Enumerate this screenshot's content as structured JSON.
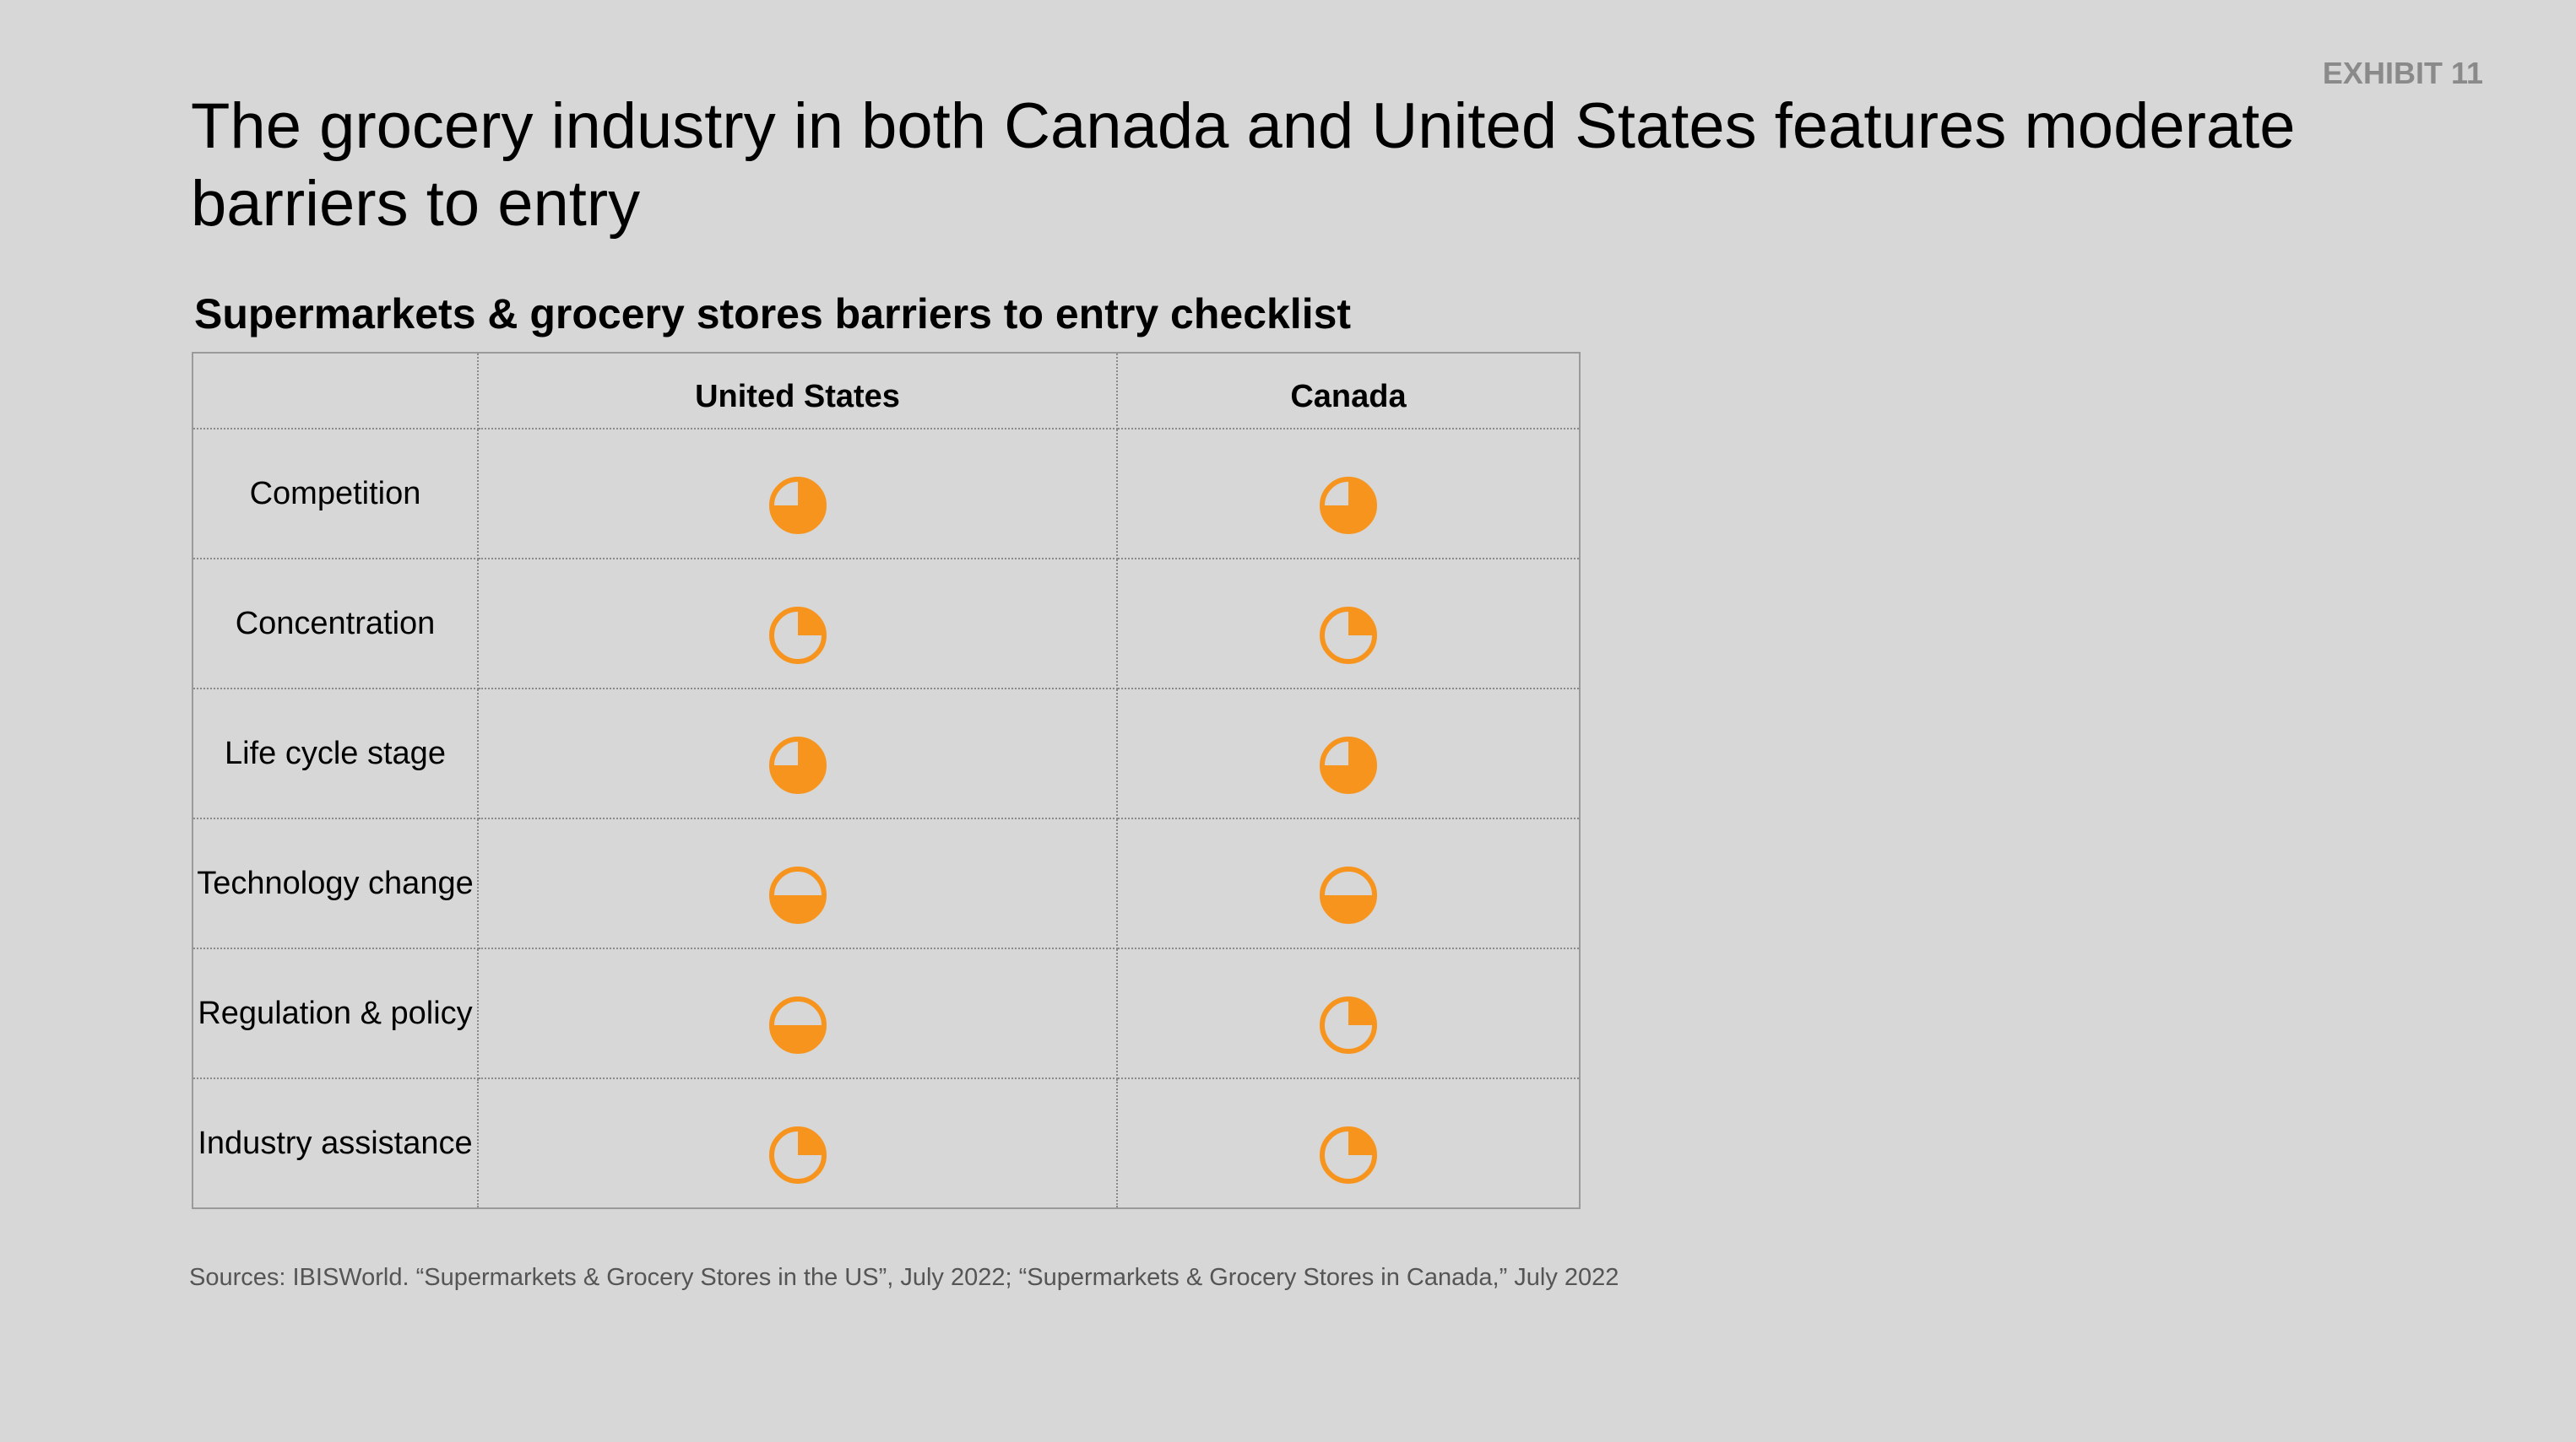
{
  "exhibit_label": "EXHIBIT 11",
  "title": "The grocery industry in both Canada and United States features moderate barriers to entry",
  "subtitle": "Supermarkets & grocery stores barriers to entry checklist",
  "table": {
    "columns": [
      "",
      "United States",
      "Canada"
    ],
    "rows": [
      {
        "label": "Competition",
        "us_level": 0.75,
        "canada_level": 0.75
      },
      {
        "label": "Concentration",
        "us_level": 0.25,
        "canada_level": 0.25
      },
      {
        "label": "Life cycle stage",
        "us_level": 0.75,
        "canada_level": 0.75
      },
      {
        "label": "Technology change",
        "us_level": 0.5,
        "canada_level": 0.5
      },
      {
        "label": "Regulation & policy",
        "us_level": 0.5,
        "canada_level": 0.25
      },
      {
        "label": "Industry assistance",
        "us_level": 0.25,
        "canada_level": 0.25
      }
    ]
  },
  "icon_color": "#f7941d",
  "sources": "Sources: IBISWorld. “Supermarkets & Grocery Stores in the US”, July 2022; “Supermarkets & Grocery Stores in Canada,” July 2022"
}
